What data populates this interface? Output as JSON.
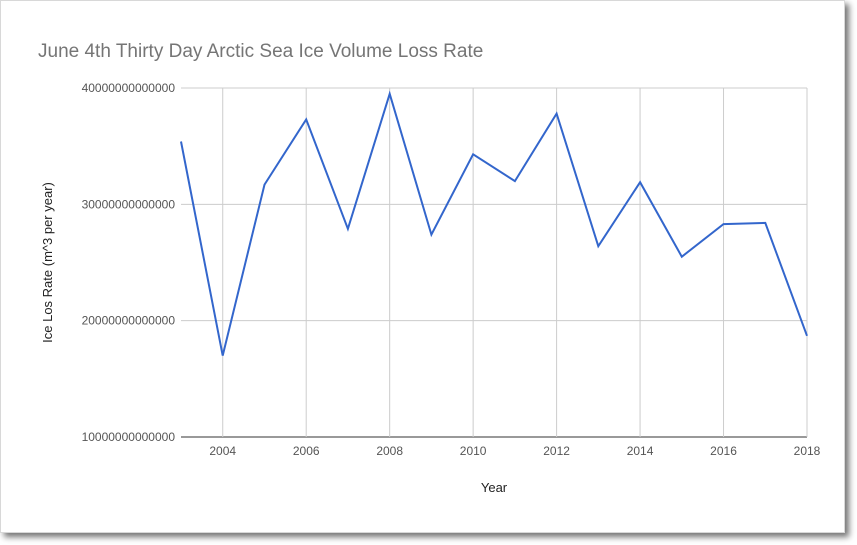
{
  "chart_data": {
    "type": "line",
    "title": "June 4th Thirty Day Arctic Sea Ice Volume Loss Rate",
    "xlabel": "Year",
    "ylabel": "Ice Los Rate (m^3 per year)",
    "xlim": [
      2003,
      2018
    ],
    "ylim": [
      10000000000000,
      40000000000000
    ],
    "x_ticks": [
      "2004",
      "2006",
      "2008",
      "2010",
      "2012",
      "2014",
      "2016",
      "2018"
    ],
    "y_ticks": [
      "10000000000000",
      "20000000000000",
      "30000000000000",
      "40000000000000"
    ],
    "grid": true,
    "legend": "none",
    "series": [
      {
        "name": "Ice Los Rate",
        "color": "#3366cc",
        "x": [
          2003,
          2004,
          2005,
          2006,
          2007,
          2008,
          2009,
          2010,
          2011,
          2012,
          2013,
          2014,
          2015,
          2016,
          2017,
          2018
        ],
        "values": [
          35400000000000,
          17000000000000,
          31700000000000,
          37300000000000,
          27900000000000,
          39500000000000,
          27400000000000,
          34300000000000,
          32000000000000,
          37800000000000,
          26400000000000,
          31900000000000,
          25500000000000,
          28300000000000,
          28400000000000,
          18700000000000
        ]
      }
    ]
  }
}
